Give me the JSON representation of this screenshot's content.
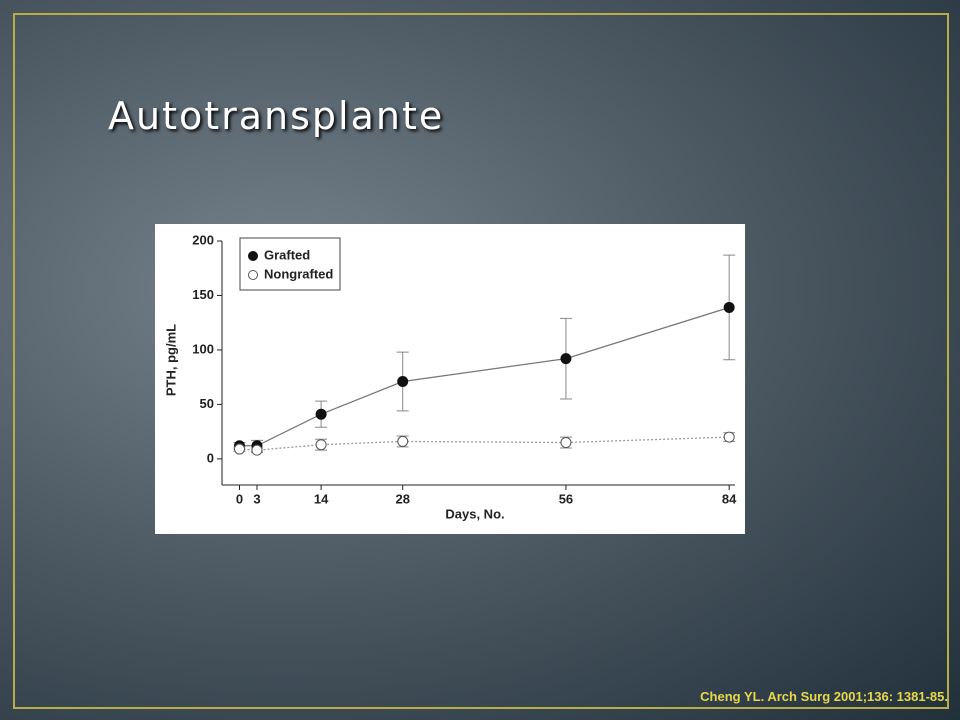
{
  "slide": {
    "title": "Autotransplante",
    "citation": "Cheng YL. Arch Surg 2001;136: 1381-85."
  },
  "chart_data": {
    "type": "line",
    "y_label": "PTH, pg/mL",
    "x_label": "Days, No.",
    "x": [
      0,
      3,
      14,
      28,
      56,
      84
    ],
    "series": [
      {
        "name": "Grafted",
        "color": "#111111",
        "marker": "filled",
        "line": "solid",
        "values": [
          12,
          12,
          41,
          71,
          92,
          139
        ],
        "errors": [
          3,
          5,
          12,
          27,
          37,
          48
        ]
      },
      {
        "name": "Nongrafted",
        "color": "#555555",
        "marker": "open",
        "line": "dotted",
        "values": [
          9,
          8,
          13,
          16,
          15,
          20
        ],
        "errors": [
          2,
          2,
          5,
          5,
          5,
          4
        ]
      }
    ],
    "xlim": [
      -3,
      85
    ],
    "ylim": [
      -24,
      200
    ],
    "xticks": [
      0,
      3,
      14,
      28,
      56,
      84
    ],
    "yticks": [
      0,
      50,
      100,
      150,
      200
    ],
    "legend": "upper left"
  }
}
